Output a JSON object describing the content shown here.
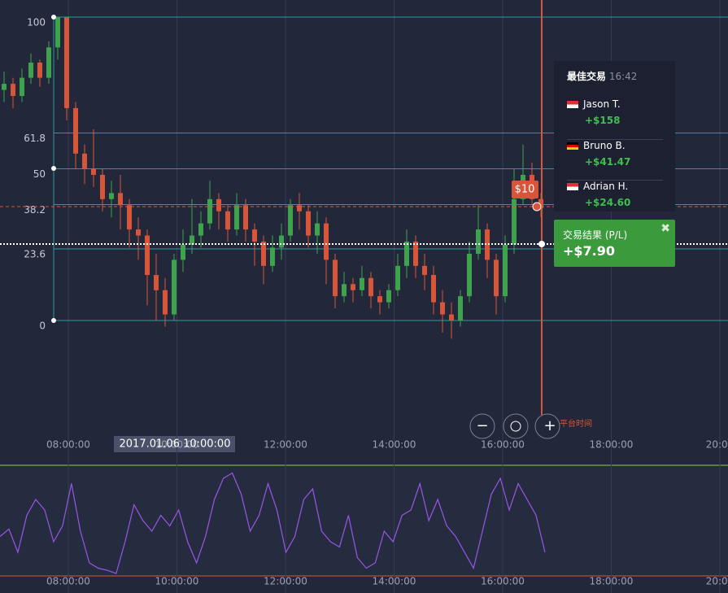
{
  "fibonacci": {
    "levels": [
      100,
      61.8,
      50,
      38.2,
      23.6,
      0
    ]
  },
  "candles": [
    [
      76,
      78,
      82,
      72
    ],
    [
      78,
      74,
      80,
      70
    ],
    [
      74,
      80,
      83,
      72
    ],
    [
      80,
      85,
      88,
      78
    ],
    [
      85,
      80,
      86,
      77
    ],
    [
      80,
      90,
      92,
      78
    ],
    [
      90,
      100,
      100,
      86
    ],
    [
      100,
      70,
      100,
      66
    ],
    [
      70,
      55,
      72,
      50
    ],
    [
      55,
      50,
      58,
      45
    ],
    [
      50,
      48,
      63,
      44
    ],
    [
      48,
      40,
      50,
      36
    ],
    [
      40,
      42,
      46,
      34
    ],
    [
      42,
      38,
      48,
      30
    ],
    [
      38,
      30,
      40,
      24
    ],
    [
      30,
      28,
      34,
      20
    ],
    [
      28,
      15,
      30,
      5
    ],
    [
      15,
      10,
      22,
      0
    ],
    [
      10,
      2,
      14,
      -2
    ],
    [
      2,
      20,
      22,
      0
    ],
    [
      20,
      25,
      30,
      16
    ],
    [
      25,
      28,
      40,
      22
    ],
    [
      28,
      32,
      36,
      24
    ],
    [
      32,
      40,
      46,
      30
    ],
    [
      40,
      36,
      42,
      30
    ],
    [
      36,
      30,
      38,
      26
    ],
    [
      30,
      38,
      42,
      28
    ],
    [
      38,
      30,
      40,
      26
    ],
    [
      30,
      26,
      32,
      18
    ],
    [
      26,
      18,
      28,
      12
    ],
    [
      18,
      24,
      28,
      16
    ],
    [
      24,
      28,
      32,
      20
    ],
    [
      28,
      38,
      40,
      26
    ],
    [
      38,
      36,
      42,
      30
    ],
    [
      36,
      28,
      38,
      24
    ],
    [
      28,
      32,
      36,
      22
    ],
    [
      32,
      20,
      34,
      12
    ],
    [
      20,
      8,
      22,
      4
    ],
    [
      8,
      12,
      16,
      6
    ],
    [
      12,
      10,
      14,
      6
    ],
    [
      10,
      14,
      18,
      8
    ],
    [
      14,
      8,
      16,
      4
    ],
    [
      8,
      6,
      10,
      2
    ],
    [
      6,
      10,
      12,
      4
    ],
    [
      10,
      18,
      22,
      8
    ],
    [
      18,
      26,
      30,
      14
    ],
    [
      26,
      18,
      28,
      14
    ],
    [
      18,
      15,
      22,
      10
    ],
    [
      15,
      6,
      18,
      2
    ],
    [
      6,
      2,
      10,
      -4
    ],
    [
      2,
      0,
      6,
      -6
    ],
    [
      0,
      8,
      10,
      -2
    ],
    [
      8,
      22,
      26,
      6
    ],
    [
      22,
      30,
      38,
      20
    ],
    [
      30,
      20,
      32,
      14
    ],
    [
      20,
      8,
      22,
      2
    ],
    [
      8,
      25,
      28,
      6
    ],
    [
      25,
      40,
      50,
      22
    ],
    [
      40,
      48,
      58,
      38
    ],
    [
      48,
      40,
      52,
      38
    ],
    [
      40,
      37,
      42,
      34
    ]
  ],
  "oscillator": [
    35,
    42,
    20,
    55,
    70,
    60,
    30,
    45,
    85,
    40,
    10,
    5,
    3,
    0,
    30,
    65,
    50,
    40,
    55,
    45,
    60,
    30,
    10,
    35,
    70,
    90,
    95,
    75,
    40,
    55,
    85,
    60,
    20,
    35,
    70,
    80,
    40,
    30,
    25,
    55,
    15,
    5,
    10,
    40,
    30,
    55,
    60,
    85,
    50,
    70,
    45,
    35,
    20,
    5,
    40,
    75,
    90,
    60,
    85,
    70,
    55,
    20
  ],
  "time_axis": [
    "08:00:00",
    "10:00:00",
    "12:00:00",
    "14:00:00",
    "16:00:00",
    "18:00:00",
    "20:00"
  ],
  "cursor_date": "2017.01.06 10:00:00",
  "trade": {
    "amount": "$10",
    "result_title": "交易结果 (P/L)",
    "result": "+$7.90"
  },
  "best_trades": {
    "title": "最佳交易",
    "time": "16:42",
    "items": [
      {
        "name": "Jason T.",
        "profit": "+$158"
      },
      {
        "name": "Bruno B.",
        "profit": "+$41.47"
      },
      {
        "name": "Adrian H.",
        "profit": "+$24.60"
      }
    ]
  },
  "platform_time": "平台时间"
}
